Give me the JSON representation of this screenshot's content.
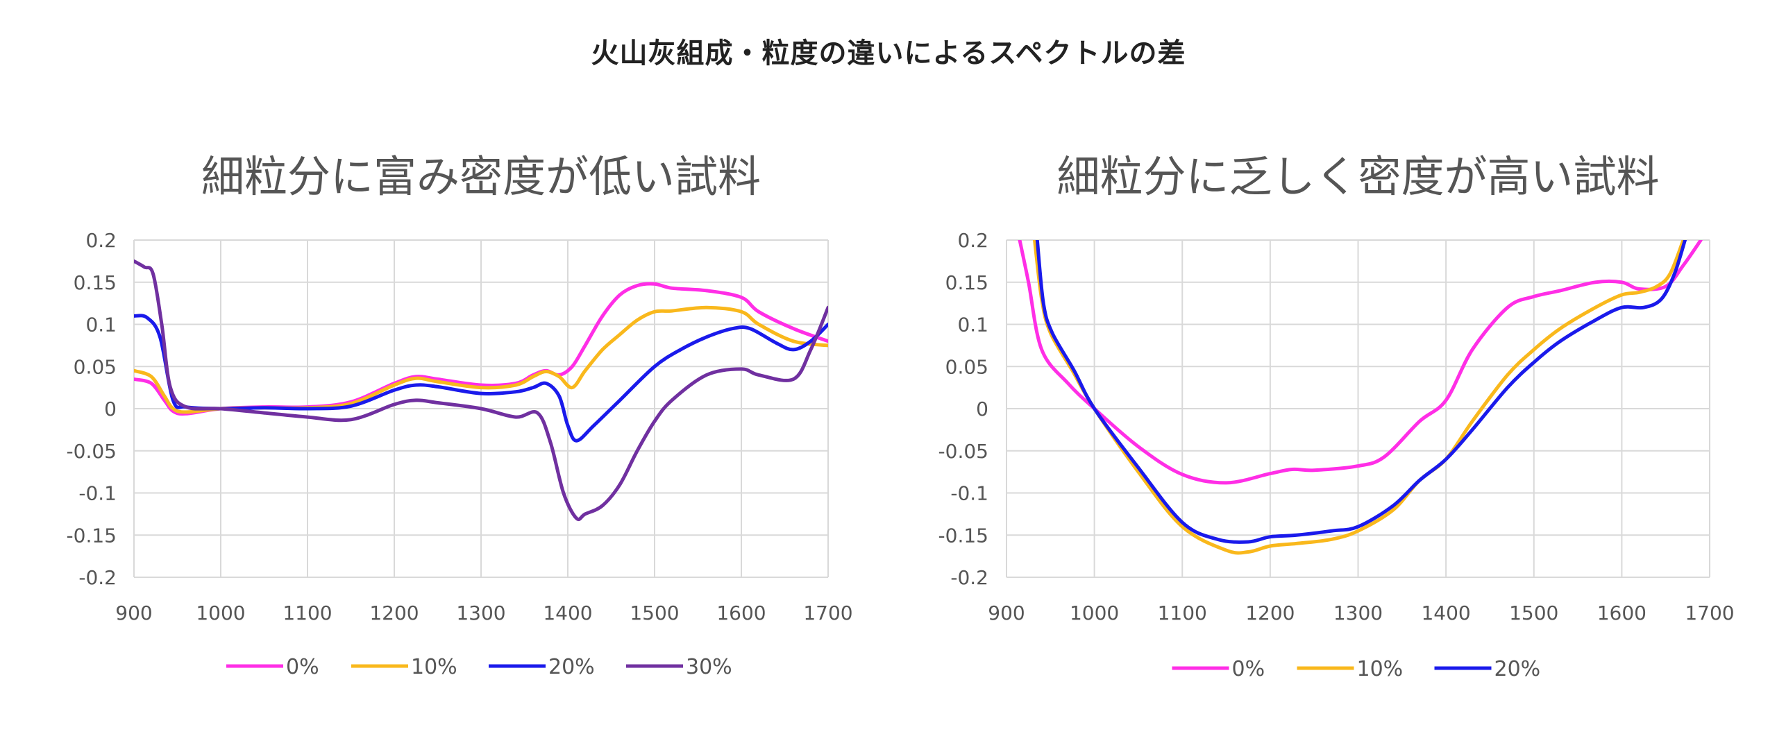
{
  "page": {
    "title": "火山灰組成・粒度の違いによるスペクトルの差"
  },
  "chart_data": [
    {
      "type": "line",
      "title": "細粒分に富み密度が低い試料",
      "xlabel": "",
      "ylabel": "",
      "xlim": [
        900,
        1700
      ],
      "ylim": [
        -0.2,
        0.2
      ],
      "xticks": [
        "900",
        "1000",
        "1100",
        "1200",
        "1300",
        "1400",
        "1500",
        "1600",
        "1700"
      ],
      "yticks": [
        "0.2",
        "0.15",
        "0.1",
        "0.05",
        "0",
        "-0.05",
        "-0.1",
        "-0.15",
        "-0.2"
      ],
      "grid": true,
      "legend_position": "bottom",
      "series": [
        {
          "name": "0%",
          "color": "#ff2ee6",
          "x": [
            900,
            920,
            935,
            945,
            960,
            1000,
            1050,
            1100,
            1150,
            1200,
            1225,
            1250,
            1300,
            1340,
            1360,
            1375,
            1390,
            1405,
            1420,
            1440,
            1460,
            1480,
            1500,
            1520,
            1560,
            1600,
            1620,
            1660,
            1700
          ],
          "y": [
            0.035,
            0.03,
            0.01,
            -0.003,
            -0.006,
            0.0,
            0.002,
            0.002,
            0.008,
            0.03,
            0.038,
            0.035,
            0.028,
            0.03,
            0.04,
            0.045,
            0.04,
            0.05,
            0.075,
            0.11,
            0.135,
            0.146,
            0.148,
            0.143,
            0.14,
            0.132,
            0.115,
            0.095,
            0.08
          ]
        },
        {
          "name": "10%",
          "color": "#f9b81c",
          "x": [
            900,
            920,
            935,
            945,
            960,
            1000,
            1050,
            1100,
            1150,
            1200,
            1225,
            1250,
            1300,
            1340,
            1360,
            1375,
            1390,
            1405,
            1420,
            1440,
            1460,
            1480,
            1500,
            1520,
            1560,
            1600,
            1620,
            1660,
            1700
          ],
          "y": [
            0.045,
            0.038,
            0.015,
            0.0,
            -0.004,
            0.0,
            0.001,
            0.001,
            0.006,
            0.028,
            0.036,
            0.032,
            0.025,
            0.028,
            0.038,
            0.044,
            0.038,
            0.025,
            0.045,
            0.07,
            0.088,
            0.105,
            0.115,
            0.116,
            0.12,
            0.115,
            0.1,
            0.08,
            0.075
          ]
        },
        {
          "name": "20%",
          "color": "#1a1aeb",
          "x": [
            900,
            915,
            930,
            945,
            960,
            1000,
            1050,
            1100,
            1150,
            1200,
            1225,
            1250,
            1300,
            1340,
            1360,
            1375,
            1390,
            1400,
            1410,
            1430,
            1460,
            1500,
            1530,
            1560,
            1590,
            1610,
            1640,
            1660,
            1680,
            1700
          ],
          "y": [
            0.11,
            0.108,
            0.085,
            0.01,
            0.002,
            0.0,
            0.001,
            0.0,
            0.003,
            0.022,
            0.028,
            0.026,
            0.018,
            0.02,
            0.025,
            0.03,
            0.015,
            -0.02,
            -0.038,
            -0.02,
            0.01,
            0.05,
            0.07,
            0.085,
            0.095,
            0.095,
            0.078,
            0.07,
            0.08,
            0.1
          ]
        },
        {
          "name": "30%",
          "color": "#7030a0",
          "x": [
            900,
            912,
            922,
            932,
            942,
            960,
            1000,
            1050,
            1100,
            1150,
            1200,
            1225,
            1250,
            1300,
            1340,
            1365,
            1380,
            1395,
            1410,
            1420,
            1440,
            1460,
            1480,
            1500,
            1520,
            1560,
            1600,
            1620,
            1660,
            1680,
            1700
          ],
          "y": [
            0.175,
            0.168,
            0.16,
            0.1,
            0.025,
            0.002,
            0.0,
            -0.005,
            -0.01,
            -0.013,
            0.005,
            0.01,
            0.007,
            0.0,
            -0.01,
            -0.005,
            -0.04,
            -0.1,
            -0.13,
            -0.125,
            -0.115,
            -0.09,
            -0.05,
            -0.015,
            0.01,
            0.04,
            0.047,
            0.04,
            0.035,
            0.07,
            0.12
          ]
        }
      ]
    },
    {
      "type": "line",
      "title": "細粒分に乏しく密度が高い試料",
      "xlabel": "",
      "ylabel": "",
      "xlim": [
        900,
        1700
      ],
      "ylim": [
        -0.2,
        0.2
      ],
      "xticks": [
        "900",
        "1000",
        "1100",
        "1200",
        "1300",
        "1400",
        "1500",
        "1600",
        "1700"
      ],
      "yticks": [
        "0.2",
        "0.15",
        "0.1",
        "0.05",
        "0",
        "-0.05",
        "-0.1",
        "-0.15",
        "-0.2"
      ],
      "grid": true,
      "legend_position": "bottom",
      "series": [
        {
          "name": "0%",
          "color": "#ff2ee6",
          "x": [
            915,
            925,
            940,
            970,
            1000,
            1050,
            1100,
            1150,
            1200,
            1225,
            1250,
            1300,
            1330,
            1370,
            1400,
            1430,
            1470,
            1500,
            1530,
            1570,
            1600,
            1620,
            1650,
            1670,
            1690
          ],
          "y": [
            0.2,
            0.15,
            0.07,
            0.03,
            0.0,
            -0.045,
            -0.078,
            -0.088,
            -0.077,
            -0.072,
            -0.073,
            -0.068,
            -0.057,
            -0.015,
            0.01,
            0.07,
            0.12,
            0.133,
            0.14,
            0.15,
            0.15,
            0.142,
            0.145,
            0.17,
            0.2
          ]
        },
        {
          "name": "10%",
          "color": "#f9b81c",
          "x": [
            932,
            940,
            950,
            975,
            1000,
            1050,
            1100,
            1150,
            1175,
            1200,
            1230,
            1270,
            1300,
            1340,
            1370,
            1400,
            1430,
            1470,
            1500,
            1530,
            1570,
            1600,
            1620,
            1640,
            1655,
            1670
          ],
          "y": [
            0.2,
            0.13,
            0.09,
            0.045,
            0.0,
            -0.075,
            -0.14,
            -0.168,
            -0.17,
            -0.163,
            -0.16,
            -0.155,
            -0.145,
            -0.12,
            -0.085,
            -0.06,
            -0.015,
            0.04,
            0.07,
            0.095,
            0.12,
            0.135,
            0.138,
            0.145,
            0.16,
            0.2
          ]
        },
        {
          "name": "20%",
          "color": "#1a1aeb",
          "x": [
            935,
            942,
            952,
            977,
            1000,
            1050,
            1100,
            1140,
            1175,
            1200,
            1230,
            1270,
            1300,
            1340,
            1370,
            1400,
            1430,
            1470,
            1500,
            1530,
            1570,
            1600,
            1625,
            1645,
            1660,
            1672
          ],
          "y": [
            0.2,
            0.125,
            0.09,
            0.045,
            0.0,
            -0.07,
            -0.135,
            -0.155,
            -0.158,
            -0.152,
            -0.15,
            -0.145,
            -0.14,
            -0.115,
            -0.085,
            -0.06,
            -0.025,
            0.025,
            0.055,
            0.08,
            0.105,
            0.12,
            0.12,
            0.13,
            0.16,
            0.2
          ]
        }
      ]
    }
  ]
}
